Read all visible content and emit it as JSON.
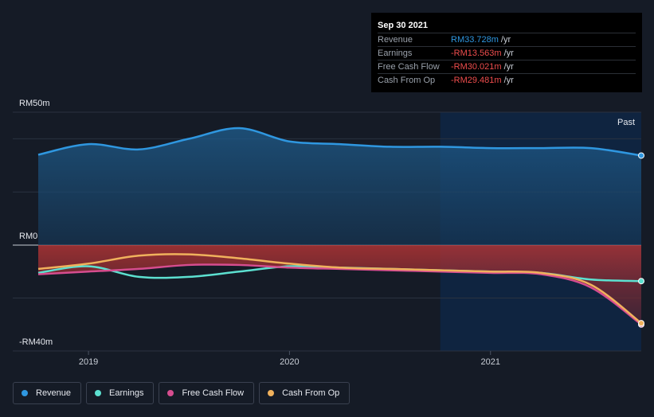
{
  "chart_data": {
    "type": "line",
    "y_axis_labels": {
      "top": "RM50m",
      "zero": "RM0",
      "bottom": "-RM40m"
    },
    "ylim": [
      -40,
      50
    ],
    "x_ticks": [
      {
        "label": "2019",
        "x": 2019.0
      },
      {
        "label": "2020",
        "x": 2020.0
      },
      {
        "label": "2021",
        "x": 2021.0
      }
    ],
    "xlim": [
      2018.75,
      2021.75
    ],
    "past_label": "Past",
    "past_start": 2020.75,
    "series": [
      {
        "name": "Revenue",
        "color": "#2f97e0",
        "x": [
          2018.75,
          2019.0,
          2019.25,
          2019.5,
          2019.75,
          2020.0,
          2020.25,
          2020.5,
          2020.75,
          2021.0,
          2021.25,
          2021.5,
          2021.75
        ],
        "values": [
          34,
          38,
          36,
          40,
          44,
          39,
          38,
          37,
          37,
          36.5,
          36.5,
          36.5,
          33.7
        ]
      },
      {
        "name": "Earnings",
        "color": "#5ce0d0",
        "x": [
          2018.75,
          2019.0,
          2019.25,
          2019.5,
          2019.75,
          2020.0,
          2020.25,
          2020.5,
          2020.75,
          2021.0,
          2021.25,
          2021.5,
          2021.75
        ],
        "values": [
          -10.5,
          -8,
          -12,
          -12,
          -10,
          -8,
          -8.5,
          -9,
          -9.5,
          -10,
          -10.5,
          -13,
          -13.6
        ]
      },
      {
        "name": "Free Cash Flow",
        "color": "#d64d8f",
        "x": [
          2018.75,
          2019.0,
          2019.25,
          2019.5,
          2019.75,
          2020.0,
          2020.25,
          2020.5,
          2020.75,
          2021.0,
          2021.25,
          2021.5,
          2021.75
        ],
        "values": [
          -11,
          -10,
          -9,
          -7.5,
          -7.5,
          -8.5,
          -9,
          -9.5,
          -10,
          -10.5,
          -11,
          -16,
          -30
        ]
      },
      {
        "name": "Cash From Op",
        "color": "#f0b15c",
        "x": [
          2018.75,
          2019.0,
          2019.25,
          2019.5,
          2019.75,
          2020.0,
          2020.25,
          2020.5,
          2020.75,
          2021.0,
          2021.25,
          2021.5,
          2021.75
        ],
        "values": [
          -9,
          -7,
          -4,
          -3.5,
          -5,
          -7,
          -8.5,
          -9,
          -9.5,
          -10,
          -10.5,
          -15,
          -29.5
        ]
      }
    ]
  },
  "tooltip": {
    "date": "Sep 30 2021",
    "rows": [
      {
        "label": "Revenue",
        "value": "RM33.728m",
        "unit": "/yr",
        "color": "#2f97e0"
      },
      {
        "label": "Earnings",
        "value": "-RM13.563m",
        "unit": "/yr",
        "color": "#ef4d4d"
      },
      {
        "label": "Free Cash Flow",
        "value": "-RM30.021m",
        "unit": "/yr",
        "color": "#ef4d4d"
      },
      {
        "label": "Cash From Op",
        "value": "-RM29.481m",
        "unit": "/yr",
        "color": "#ef4d4d"
      }
    ]
  },
  "legend": [
    {
      "label": "Revenue",
      "color": "#2f97e0"
    },
    {
      "label": "Earnings",
      "color": "#5ce0d0"
    },
    {
      "label": "Free Cash Flow",
      "color": "#d64d8f"
    },
    {
      "label": "Cash From Op",
      "color": "#f0b15c"
    }
  ]
}
